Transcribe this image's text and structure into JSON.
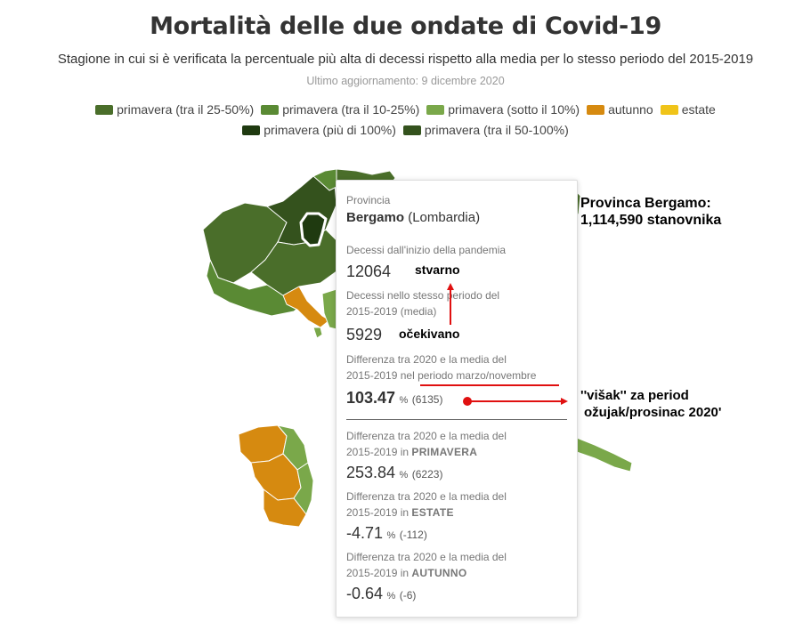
{
  "header": {
    "title": "Mortalità delle due ondate di Covid-19",
    "subtitle": "Stagione in cui si è verificata la percentuale più alta di decessi rispetto alla media per lo stesso periodo del 2015-2019",
    "updated": "Ultimo aggiornamento: 9 dicembre 2020"
  },
  "legend": {
    "row1": [
      {
        "label": "primavera (tra il 25-50%)",
        "color": "#4a6e2a"
      },
      {
        "label": "primavera (tra il 10-25%)",
        "color": "#5a8a34"
      },
      {
        "label": "primavera (sotto il 10%)",
        "color": "#7aa84a"
      },
      {
        "label": "autunno",
        "color": "#d68a10"
      },
      {
        "label": "estate",
        "color": "#f0c419"
      }
    ],
    "row2": [
      {
        "label": "primavera (più di 100%)",
        "color": "#1f3a10"
      },
      {
        "label": "primavera (tra il 50-100%)",
        "color": "#34521d"
      }
    ]
  },
  "tooltip": {
    "province_label": "Provincia",
    "province_name": "Bergamo",
    "province_region": "(Lombardia)",
    "deaths_label": "Decessi dall'inizio della pandemia",
    "deaths_value": "12064",
    "avg_label_1": "Decessi nello stesso periodo del",
    "avg_label_2": "2015-2019 (media)",
    "avg_value": "5929",
    "diff_label_1": "Differenza tra 2020 e la media del",
    "diff_label_2": "2015-2019 nel periodo marzo/novembre",
    "diff_value": "103.47",
    "diff_unit": "%",
    "diff_abs": "(6135)",
    "seasons": [
      {
        "label_1": "Differenza tra 2020 e la media del",
        "label_2_prefix": "2015-2019 in",
        "season": "PRIMAVERA",
        "value": "253.84",
        "unit": "%",
        "abs": "(6223)"
      },
      {
        "label_1": "Differenza tra 2020 e la media del",
        "label_2_prefix": "2015-2019 in",
        "season": "ESTATE",
        "value": "-4.71",
        "unit": "%",
        "abs": "(-112)"
      },
      {
        "label_1": "Differenza tra 2020 e la media del",
        "label_2_prefix": "2015-2019 in",
        "season": "AUTUNNO",
        "value": "-0.64",
        "unit": "%",
        "abs": "(-6)"
      }
    ]
  },
  "annotations": {
    "actual": "stvarno",
    "expected": "očekivano",
    "population_1": "Provinca Bergamo:",
    "population_2": "1,114,590 stanovnika",
    "excess_1": "''višak'' za period",
    "excess_2": "ožujak/prosinac 2020'",
    "arrow_color": "#e01010"
  }
}
